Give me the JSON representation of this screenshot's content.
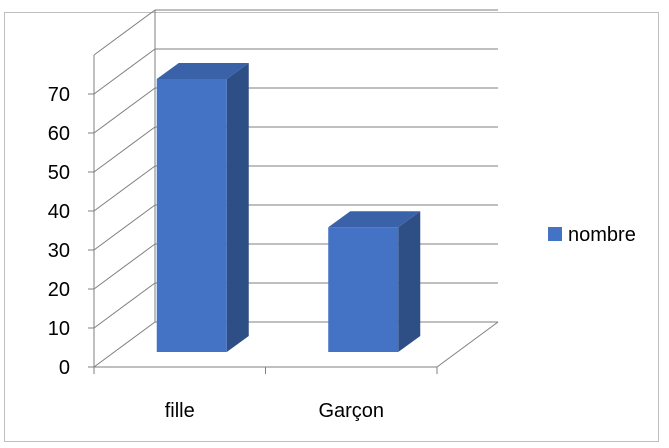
{
  "chart_data": {
    "type": "bar",
    "categories": [
      "fille",
      "Garçon"
    ],
    "series": [
      {
        "name": "nombre",
        "values": [
          70,
          32
        ]
      }
    ],
    "yticks": [
      "0",
      "10",
      "20",
      "30",
      "40",
      "50",
      "60",
      "70"
    ],
    "ylim": [
      0,
      70
    ],
    "grid": true,
    "legend_placement": "right",
    "legend": [
      "nombre"
    ],
    "colors": {
      "bar_front": "#4472c4",
      "bar_side": "#2e4e86",
      "bar_top": "#3a62a8",
      "grid": "#7f7f7f"
    }
  }
}
